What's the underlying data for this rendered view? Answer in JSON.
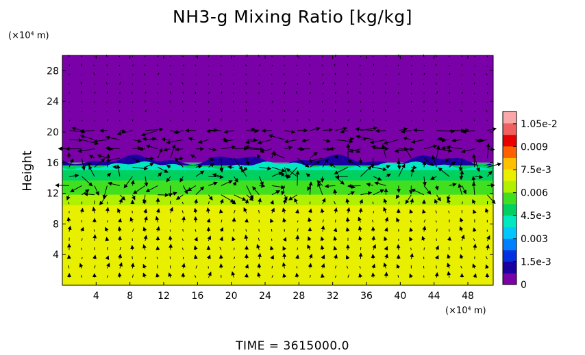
{
  "chart_data": {
    "type": "heatmap",
    "title": "NH3-g Mixing Ratio [kg/kg]",
    "ylabel": "Height",
    "y_unit": "(×10⁴ m)",
    "x_unit": "(×10⁴ m)",
    "xlim": [
      0,
      51
    ],
    "ylim": [
      0,
      30
    ],
    "x_ticks": [
      4,
      8,
      12,
      16,
      20,
      24,
      28,
      32,
      36,
      40,
      44,
      48
    ],
    "y_ticks": [
      4,
      8,
      12,
      16,
      20,
      24,
      28
    ],
    "x_tick_labels": [
      "4",
      "8",
      "12",
      "16",
      "20",
      "24",
      "28",
      "32",
      "36",
      "40",
      "44",
      "48"
    ],
    "y_tick_labels": [
      "4",
      "8",
      "12",
      "16",
      "20",
      "24",
      "28"
    ],
    "colorbar": {
      "range": [
        0,
        0.0113
      ],
      "tick_values": [
        0,
        0.0015,
        0.003,
        0.0045,
        0.006,
        0.0075,
        0.009,
        0.0105
      ],
      "tick_labels": [
        "0",
        "1.5e-3",
        "0.003",
        "4.5e-3",
        "0.006",
        "7.5e-3",
        "0.009",
        "1.05e-2"
      ],
      "colors": [
        "#7a00a8",
        "#1a00a0",
        "#0030e0",
        "#0080ff",
        "#00c8ff",
        "#00e8c0",
        "#00d060",
        "#40e020",
        "#b0f000",
        "#e8f000",
        "#ffc000",
        "#ff6000",
        "#e80000",
        "#f06060",
        "#f8a8a8"
      ]
    },
    "field": {
      "top_value": 0.0,
      "cloud_top_km_x1e4": 16,
      "cloud_mix_value": 0.0048,
      "lower_value": 0.0071,
      "lower_top_km_x1e4": 9.5
    },
    "vector_field": {
      "grid_dx": 1.5,
      "grid_dy": 1.2
    },
    "time_label": "TIME = 3615000.0"
  }
}
